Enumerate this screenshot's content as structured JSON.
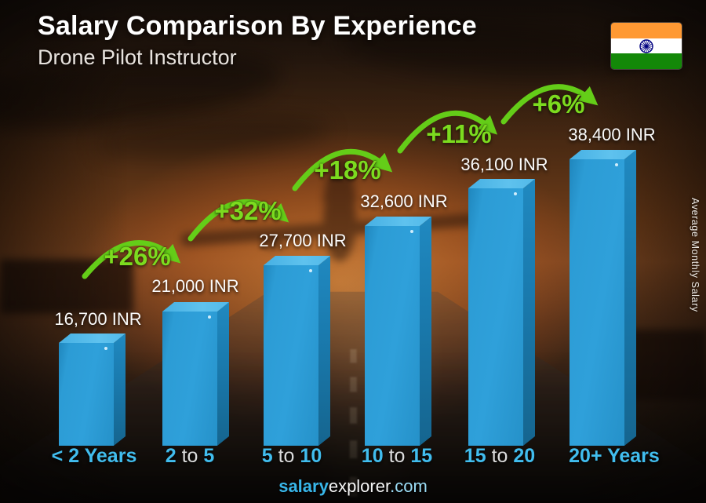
{
  "header": {
    "title": "Salary Comparison By Experience",
    "subtitle": "Drone Pilot Instructor"
  },
  "flag": {
    "country": "India"
  },
  "right_axis_label": "Average Monthly Salary",
  "footer": {
    "brand_bold": "salary",
    "brand_regular": "explorer",
    "brand_tld": ".com"
  },
  "chart_data": {
    "type": "bar",
    "title": "Salary Comparison By Experience",
    "subtitle": "Drone Pilot Instructor",
    "currency": "INR",
    "ylabel": "Average Monthly Salary",
    "categories": [
      "< 2 Years",
      "2 to 5",
      "5 to 10",
      "10 to 15",
      "15 to 20",
      "20+ Years"
    ],
    "values": [
      16700,
      21000,
      27700,
      32600,
      36100,
      38400
    ],
    "value_labels": [
      "16,700 INR",
      "21,000 INR",
      "27,700 INR",
      "32,600 INR",
      "36,100 INR",
      "38,400 INR"
    ],
    "pct_changes": [
      "+26%",
      "+32%",
      "+18%",
      "+11%",
      "+6%"
    ],
    "legend_position": "none",
    "grid": false,
    "colors": {
      "bar_front": "#2c9cd5",
      "bar_side": "#15658f",
      "bar_top": "#5fc2ee",
      "accent_green": "#68d01c",
      "value_text": "#fbfbfb",
      "category_text": "#41bdee",
      "flag_saffron": "#ff9933",
      "flag_white": "#ffffff",
      "flag_green": "#138808",
      "flag_navy": "#000080"
    }
  }
}
